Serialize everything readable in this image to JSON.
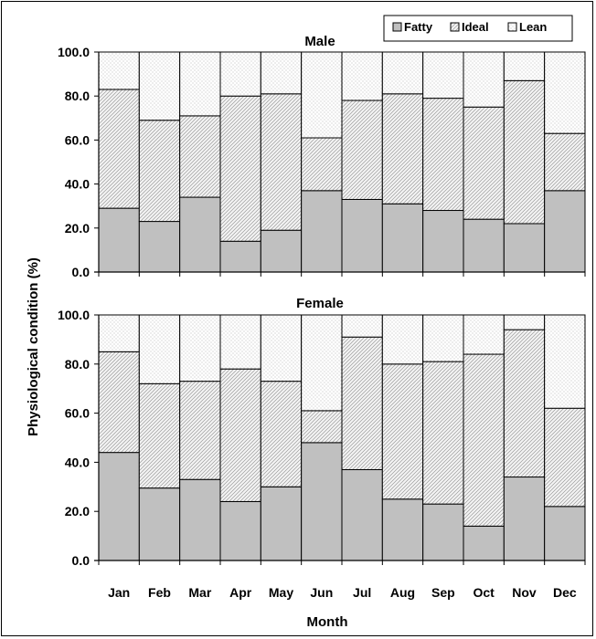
{
  "chart_data": [
    {
      "type": "bar",
      "stacked": true,
      "title": "Male",
      "categories": [
        "Jan",
        "Feb",
        "Mar",
        "Apr",
        "May",
        "Jun",
        "Jul",
        "Aug",
        "Sep",
        "Oct",
        "Nov",
        "Dec"
      ],
      "series": [
        {
          "name": "Fatty",
          "values": [
            29,
            23,
            34,
            14,
            19,
            37,
            33,
            31,
            28,
            24,
            22,
            37
          ],
          "color": "#c0c0c0"
        },
        {
          "name": "Ideal",
          "values": [
            54,
            46,
            37,
            66,
            62,
            24,
            45,
            50,
            51,
            51,
            65,
            26
          ],
          "color": "#e6e6e6"
        },
        {
          "name": "Lean",
          "values": [
            17,
            31,
            29,
            20,
            19,
            39,
            22,
            19,
            21,
            25,
            13,
            37
          ],
          "color": "#f2f2f2"
        }
      ],
      "ylim": [
        0,
        100
      ],
      "yticks": [
        "0.0",
        "20.0",
        "40.0",
        "60.0",
        "80.0",
        "100.0"
      ],
      "grid": false
    },
    {
      "type": "bar",
      "stacked": true,
      "title": "Female",
      "categories": [
        "Jan",
        "Feb",
        "Mar",
        "Apr",
        "May",
        "Jun",
        "Jul",
        "Aug",
        "Sep",
        "Oct",
        "Nov",
        "Dec"
      ],
      "series": [
        {
          "name": "Fatty",
          "values": [
            44,
            29.5,
            33,
            24,
            30,
            48,
            37,
            25,
            23,
            14,
            34,
            22
          ],
          "color": "#c0c0c0"
        },
        {
          "name": "Ideal",
          "values": [
            41,
            42.5,
            40,
            54,
            43,
            13,
            54,
            55,
            58,
            70,
            60,
            40
          ],
          "color": "#e6e6e6"
        },
        {
          "name": "Lean",
          "values": [
            15,
            28,
            27,
            22,
            27,
            39,
            9,
            20,
            19,
            16,
            6,
            38
          ],
          "color": "#f2f2f2"
        }
      ],
      "ylim": [
        0,
        100
      ],
      "yticks": [
        "0.0",
        "20.0",
        "40.0",
        "60.0",
        "80.0",
        "100.0"
      ],
      "grid": false
    }
  ],
  "ylabel": "Physiological condition (%)",
  "xlabel": "Month",
  "legend": {
    "position": "top-right",
    "items": [
      "Fatty",
      "Ideal",
      "Lean"
    ]
  }
}
